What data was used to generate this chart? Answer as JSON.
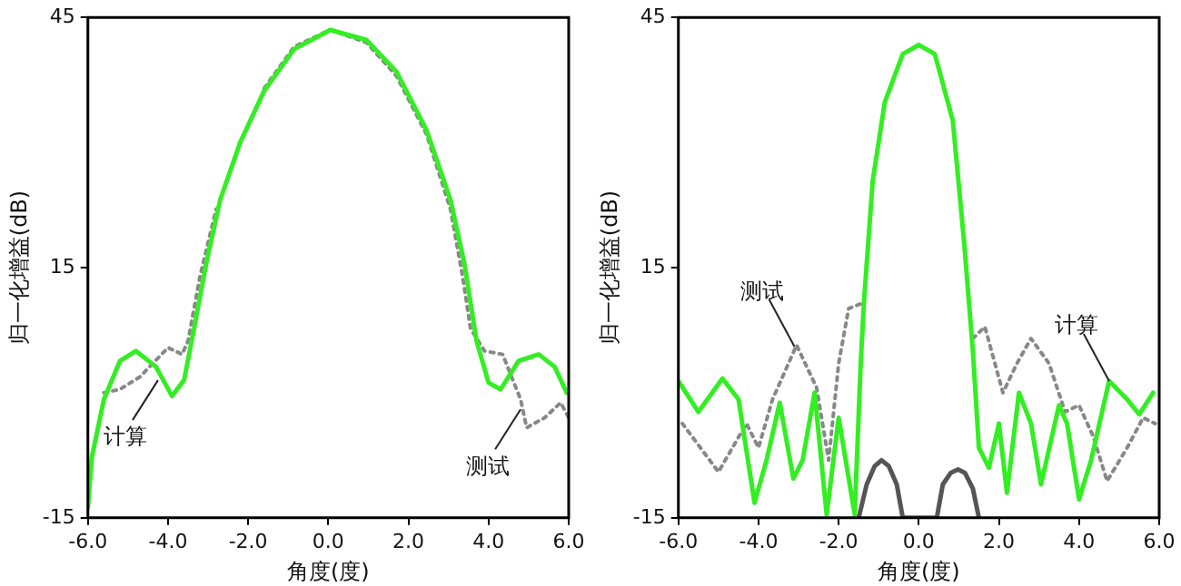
{
  "chart_data": [
    {
      "type": "line",
      "xlabel": "角度(度)",
      "ylabel": "归一化增益(dB)",
      "xlim": [
        -6,
        6
      ],
      "xticks": [
        {
          "value": -6,
          "label": "-6.0"
        },
        {
          "value": -4,
          "label": "-4.0"
        },
        {
          "value": -2,
          "label": "-2.0"
        },
        {
          "value": 0,
          "label": "0.0"
        },
        {
          "value": 2,
          "label": "2.0"
        },
        {
          "value": 4,
          "label": "4.0"
        },
        {
          "value": 6,
          "label": "6.0"
        }
      ],
      "ylim": [
        -15,
        45
      ],
      "yticks": [
        -15,
        15,
        45
      ],
      "grid": false,
      "legend": false,
      "marker": "none",
      "series": [
        {
          "color": "#33ee22",
          "line_style": "solid",
          "x": [
            -6.0,
            -5.9,
            -5.6,
            -5.2,
            -4.8,
            -4.3,
            -3.9,
            -3.6,
            -3.35,
            -3.05,
            -2.7,
            -2.2,
            -1.6,
            -0.85,
            0.05,
            0.95,
            1.7,
            2.45,
            3.05,
            3.4,
            3.7,
            4.0,
            4.3,
            4.75,
            5.25,
            5.65,
            5.95
          ],
          "values": [
            -13.8,
            -7.7,
            -0.8,
            3.8,
            5,
            3.1,
            -0.4,
            1.5,
            7.7,
            15.4,
            23.1,
            30,
            36.2,
            41.2,
            43.5,
            42.3,
            38.5,
            31.5,
            23.1,
            15.4,
            6.2,
            1.2,
            0.4,
            3.8,
            4.6,
            3.1,
            0
          ]
        },
        {
          "color": "#888888",
          "line_style": "dotted",
          "x": [
            -5.6,
            -5.2,
            -4.7,
            -4.0,
            -3.65,
            -3.5,
            -3.2,
            -2.8,
            -2.2,
            -1.6,
            -0.85,
            0.05,
            0.95,
            1.7,
            2.45,
            3.05,
            3.35,
            3.55,
            3.9,
            4.35,
            4.8,
            4.95,
            5.4,
            5.8,
            6.0
          ],
          "values": [
            0,
            0.4,
            1.9,
            5.4,
            4.6,
            6.2,
            14,
            22,
            null,
            36.5,
            41.5,
            43.5,
            42,
            38,
            31,
            22,
            14,
            7.7,
            5,
            4.6,
            -0.8,
            -4.2,
            -3,
            -1.2,
            -3
          ]
        }
      ],
      "annotations": [
        {
          "text": "计算",
          "x": -4.25,
          "y": 1.5
        },
        {
          "text": "测试",
          "x": 4.8,
          "y": -2
        }
      ]
    },
    {
      "type": "line",
      "xlabel": "角度(度)",
      "ylabel": "归一化增益(dB)",
      "xlim": [
        -6,
        6
      ],
      "xticks": [
        {
          "value": -6,
          "label": "-6.0"
        },
        {
          "value": -4,
          "label": "-4.0"
        },
        {
          "value": -2,
          "label": "-2.0"
        },
        {
          "value": 0,
          "label": "0.0"
        },
        {
          "value": 2,
          "label": "2.0"
        },
        {
          "value": 4,
          "label": "4.0"
        },
        {
          "value": 6,
          "label": "6.0"
        }
      ],
      "ylim": [
        -15,
        45
      ],
      "yticks": [
        -15,
        15,
        45
      ],
      "grid": false,
      "legend": false,
      "marker": "none",
      "series": [
        {
          "color": "#33ee22",
          "line_style": "solid",
          "x": [
            -6.0,
            -5.5,
            -4.9,
            -4.5,
            -4.1,
            -3.8,
            -3.47,
            -3.13,
            -2.9,
            -2.6,
            -2.3,
            -2.0,
            -1.6,
            -1.45,
            -1.37,
            -1.15,
            -0.85,
            -0.4,
            0,
            0.4,
            0.85,
            1.13,
            1.35,
            1.5,
            1.75,
            2.0,
            2.2,
            2.5,
            2.8,
            3.05,
            3.5,
            3.7,
            4.0,
            4.3,
            4.75,
            5.2,
            5.5,
            5.85
          ],
          "values": [
            1.4,
            -2.3,
            1.7,
            -0.8,
            -13.2,
            -8.1,
            -1.2,
            -10.3,
            -8.1,
            0,
            -14.6,
            -3.0,
            -14.6,
            3.5,
            10.8,
            25.4,
            34.8,
            40.6,
            41.7,
            40.6,
            32.6,
            18.1,
            5,
            -6.6,
            -9,
            -3.7,
            -12,
            0,
            -3.7,
            -11,
            -1.5,
            -3.7,
            -12.8,
            -8.1,
            1.4,
            -0.8,
            -2.6,
            0
          ]
        },
        {
          "color": "#888888",
          "line_style": "dotted",
          "x": [
            -5.9,
            -5.0,
            -4.3,
            -4.0,
            -3.65,
            -3.05,
            -2.55,
            -2.25,
            -2.0,
            -1.75,
            -1.37,
            -1.15,
            -0.85,
            -0.4,
            0,
            0.4,
            0.85,
            1.13,
            1.35,
            1.65,
            2.1,
            2.45,
            2.8,
            3.25,
            3.65,
            4.0,
            4.35,
            4.7,
            5.2,
            5.6,
            5.9
          ],
          "values": [
            -3.7,
            -9.5,
            -3.7,
            -6.6,
            -0.8,
            5.7,
            0.6,
            -8.1,
            3.5,
            10.1,
            10.8,
            null,
            null,
            null,
            null,
            null,
            null,
            null,
            6.5,
            7.9,
            0,
            3.5,
            6.5,
            3.5,
            -2.3,
            -1.5,
            -5.2,
            -10.6,
            -6.6,
            -3,
            -3.7
          ]
        },
        {
          "color": "#555555",
          "line_style": "solid",
          "x": [
            -1.5,
            -1.3,
            -1.1,
            -0.93,
            -0.75,
            -0.55,
            -0.4,
            0.45,
            0.6,
            0.8,
            0.98,
            1.15,
            1.35,
            1.5
          ],
          "values": [
            -15,
            -11,
            -8.8,
            -8.1,
            -8.8,
            -11,
            -15,
            -15,
            -11,
            -9.6,
            -9.2,
            -9.6,
            -11.5,
            -15
          ]
        }
      ],
      "annotations": [
        {
          "text": "测试",
          "x": -3.1,
          "y": 5.5
        },
        {
          "text": "计算",
          "x": 4.75,
          "y": 1.4
        }
      ]
    }
  ]
}
